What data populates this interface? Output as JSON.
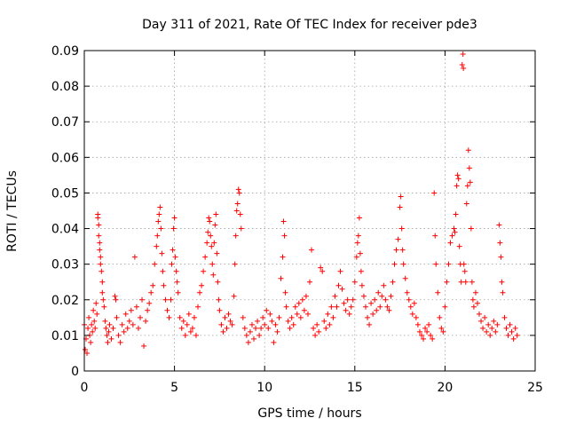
{
  "chart_data": {
    "type": "scatter",
    "title": "Day 311 of 2021, Rate Of TEC Index for receiver pde3",
    "xlabel": "GPS time / hours",
    "ylabel": "ROTI / TECUs",
    "xlim": [
      0,
      25
    ],
    "ylim": [
      0,
      0.09
    ],
    "x_ticks": [
      0,
      5,
      10,
      15,
      20,
      25
    ],
    "y_ticks": [
      0,
      0.01,
      0.02,
      0.03,
      0.04,
      0.05,
      0.06,
      0.07,
      0.08,
      0.09
    ],
    "x_tick_labels": [
      "0",
      "5",
      "10",
      "15",
      "20",
      "25"
    ],
    "y_tick_labels": [
      "0",
      "0.01",
      "0.02",
      "0.03",
      "0.04",
      "0.05",
      "0.06",
      "0.07",
      "0.08",
      "0.09"
    ],
    "grid": true,
    "marker": "+",
    "marker_color": "#ff0000",
    "series": [
      {
        "points": [
          [
            0.0,
            0.013
          ],
          [
            0.05,
            0.006
          ],
          [
            0.1,
            0.009
          ],
          [
            0.15,
            0.005
          ],
          [
            0.2,
            0.012
          ],
          [
            0.25,
            0.015
          ],
          [
            0.3,
            0.01
          ],
          [
            0.35,
            0.008
          ],
          [
            0.4,
            0.013
          ],
          [
            0.45,
            0.011
          ],
          [
            0.5,
            0.017
          ],
          [
            0.55,
            0.014
          ],
          [
            0.6,
            0.012
          ],
          [
            0.65,
            0.019
          ],
          [
            0.7,
            0.016
          ],
          [
            0.75,
            0.043
          ],
          [
            0.75,
            0.044
          ],
          [
            0.8,
            0.038
          ],
          [
            0.8,
            0.041
          ],
          [
            0.85,
            0.034
          ],
          [
            0.85,
            0.036
          ],
          [
            0.9,
            0.03
          ],
          [
            0.9,
            0.032
          ],
          [
            0.95,
            0.028
          ],
          [
            1.0,
            0.025
          ],
          [
            1.0,
            0.022
          ],
          [
            1.05,
            0.02
          ],
          [
            1.1,
            0.018
          ],
          [
            1.15,
            0.014
          ],
          [
            1.2,
            0.012
          ],
          [
            1.25,
            0.01
          ],
          [
            1.3,
            0.008
          ],
          [
            1.35,
            0.011
          ],
          [
            1.4,
            0.013
          ],
          [
            1.5,
            0.009
          ],
          [
            1.6,
            0.012
          ],
          [
            1.7,
            0.021
          ],
          [
            1.75,
            0.02
          ],
          [
            1.8,
            0.015
          ],
          [
            1.9,
            0.01
          ],
          [
            2.0,
            0.008
          ],
          [
            2.1,
            0.013
          ],
          [
            2.2,
            0.011
          ],
          [
            2.3,
            0.016
          ],
          [
            2.4,
            0.012
          ],
          [
            2.5,
            0.014
          ],
          [
            2.6,
            0.017
          ],
          [
            2.7,
            0.013
          ],
          [
            2.8,
            0.032
          ],
          [
            2.9,
            0.018
          ],
          [
            3.0,
            0.012
          ],
          [
            3.1,
            0.015
          ],
          [
            3.2,
            0.02
          ],
          [
            3.3,
            0.007
          ],
          [
            3.4,
            0.014
          ],
          [
            3.5,
            0.017
          ],
          [
            3.6,
            0.019
          ],
          [
            3.7,
            0.022
          ],
          [
            3.8,
            0.024
          ],
          [
            3.9,
            0.03
          ],
          [
            4.0,
            0.035
          ],
          [
            4.05,
            0.038
          ],
          [
            4.1,
            0.042
          ],
          [
            4.15,
            0.044
          ],
          [
            4.2,
            0.046
          ],
          [
            4.25,
            0.04
          ],
          [
            4.3,
            0.033
          ],
          [
            4.35,
            0.028
          ],
          [
            4.4,
            0.024
          ],
          [
            4.5,
            0.02
          ],
          [
            4.6,
            0.017
          ],
          [
            4.7,
            0.015
          ],
          [
            4.8,
            0.02
          ],
          [
            4.85,
            0.03
          ],
          [
            4.9,
            0.034
          ],
          [
            4.95,
            0.04
          ],
          [
            5.0,
            0.043
          ],
          [
            5.05,
            0.032
          ],
          [
            5.1,
            0.028
          ],
          [
            5.15,
            0.025
          ],
          [
            5.2,
            0.022
          ],
          [
            5.3,
            0.015
          ],
          [
            5.4,
            0.012
          ],
          [
            5.5,
            0.014
          ],
          [
            5.6,
            0.01
          ],
          [
            5.7,
            0.013
          ],
          [
            5.8,
            0.016
          ],
          [
            5.9,
            0.011
          ],
          [
            6.0,
            0.012
          ],
          [
            6.1,
            0.015
          ],
          [
            6.2,
            0.01
          ],
          [
            6.3,
            0.018
          ],
          [
            6.4,
            0.022
          ],
          [
            6.5,
            0.024
          ],
          [
            6.6,
            0.028
          ],
          [
            6.7,
            0.032
          ],
          [
            6.8,
            0.036
          ],
          [
            6.85,
            0.039
          ],
          [
            6.9,
            0.043
          ],
          [
            6.95,
            0.042
          ],
          [
            7.0,
            0.038
          ],
          [
            7.05,
            0.035
          ],
          [
            7.1,
            0.03
          ],
          [
            7.15,
            0.027
          ],
          [
            7.2,
            0.036
          ],
          [
            7.25,
            0.041
          ],
          [
            7.3,
            0.044
          ],
          [
            7.35,
            0.033
          ],
          [
            7.4,
            0.025
          ],
          [
            7.45,
            0.02
          ],
          [
            7.5,
            0.017
          ],
          [
            7.6,
            0.013
          ],
          [
            7.7,
            0.011
          ],
          [
            7.8,
            0.015
          ],
          [
            7.9,
            0.012
          ],
          [
            8.0,
            0.016
          ],
          [
            8.1,
            0.014
          ],
          [
            8.2,
            0.013
          ],
          [
            8.3,
            0.021
          ],
          [
            8.35,
            0.03
          ],
          [
            8.4,
            0.038
          ],
          [
            8.45,
            0.045
          ],
          [
            8.5,
            0.047
          ],
          [
            8.55,
            0.051
          ],
          [
            8.6,
            0.05
          ],
          [
            8.65,
            0.044
          ],
          [
            8.7,
            0.04
          ],
          [
            8.8,
            0.015
          ],
          [
            8.9,
            0.012
          ],
          [
            9.0,
            0.01
          ],
          [
            9.1,
            0.008
          ],
          [
            9.2,
            0.011
          ],
          [
            9.3,
            0.013
          ],
          [
            9.4,
            0.009
          ],
          [
            9.5,
            0.012
          ],
          [
            9.6,
            0.014
          ],
          [
            9.7,
            0.01
          ],
          [
            9.8,
            0.012
          ],
          [
            9.9,
            0.015
          ],
          [
            10.0,
            0.013
          ],
          [
            10.1,
            0.017
          ],
          [
            10.2,
            0.012
          ],
          [
            10.3,
            0.016
          ],
          [
            10.4,
            0.014
          ],
          [
            10.5,
            0.008
          ],
          [
            10.6,
            0.013
          ],
          [
            10.7,
            0.011
          ],
          [
            10.8,
            0.015
          ],
          [
            10.9,
            0.026
          ],
          [
            11.0,
            0.032
          ],
          [
            11.05,
            0.042
          ],
          [
            11.1,
            0.038
          ],
          [
            11.15,
            0.022
          ],
          [
            11.2,
            0.018
          ],
          [
            11.3,
            0.014
          ],
          [
            11.4,
            0.012
          ],
          [
            11.5,
            0.015
          ],
          [
            11.6,
            0.013
          ],
          [
            11.7,
            0.018
          ],
          [
            11.8,
            0.016
          ],
          [
            11.9,
            0.019
          ],
          [
            12.0,
            0.015
          ],
          [
            12.1,
            0.02
          ],
          [
            12.2,
            0.017
          ],
          [
            12.3,
            0.021
          ],
          [
            12.4,
            0.016
          ],
          [
            12.5,
            0.025
          ],
          [
            12.6,
            0.034
          ],
          [
            12.7,
            0.012
          ],
          [
            12.8,
            0.01
          ],
          [
            12.9,
            0.013
          ],
          [
            13.0,
            0.011
          ],
          [
            13.1,
            0.029
          ],
          [
            13.2,
            0.028
          ],
          [
            13.3,
            0.014
          ],
          [
            13.4,
            0.012
          ],
          [
            13.5,
            0.016
          ],
          [
            13.6,
            0.013
          ],
          [
            13.7,
            0.018
          ],
          [
            13.8,
            0.015
          ],
          [
            13.9,
            0.021
          ],
          [
            14.0,
            0.018
          ],
          [
            14.1,
            0.024
          ],
          [
            14.2,
            0.028
          ],
          [
            14.3,
            0.023
          ],
          [
            14.4,
            0.019
          ],
          [
            14.5,
            0.017
          ],
          [
            14.6,
            0.02
          ],
          [
            14.7,
            0.016
          ],
          [
            14.8,
            0.018
          ],
          [
            14.9,
            0.02
          ],
          [
            15.0,
            0.025
          ],
          [
            15.1,
            0.032
          ],
          [
            15.15,
            0.036
          ],
          [
            15.2,
            0.038
          ],
          [
            15.25,
            0.043
          ],
          [
            15.3,
            0.033
          ],
          [
            15.35,
            0.028
          ],
          [
            15.4,
            0.024
          ],
          [
            15.5,
            0.021
          ],
          [
            15.6,
            0.018
          ],
          [
            15.7,
            0.015
          ],
          [
            15.8,
            0.013
          ],
          [
            15.9,
            0.019
          ],
          [
            16.0,
            0.016
          ],
          [
            16.1,
            0.02
          ],
          [
            16.2,
            0.017
          ],
          [
            16.3,
            0.022
          ],
          [
            16.4,
            0.018
          ],
          [
            16.5,
            0.021
          ],
          [
            16.6,
            0.024
          ],
          [
            16.7,
            0.02
          ],
          [
            16.8,
            0.018
          ],
          [
            16.9,
            0.017
          ],
          [
            17.0,
            0.021
          ],
          [
            17.1,
            0.025
          ],
          [
            17.2,
            0.03
          ],
          [
            17.3,
            0.034
          ],
          [
            17.4,
            0.037
          ],
          [
            17.5,
            0.046
          ],
          [
            17.55,
            0.049
          ],
          [
            17.6,
            0.04
          ],
          [
            17.65,
            0.034
          ],
          [
            17.7,
            0.03
          ],
          [
            17.8,
            0.026
          ],
          [
            17.9,
            0.022
          ],
          [
            18.0,
            0.02
          ],
          [
            18.1,
            0.018
          ],
          [
            18.2,
            0.016
          ],
          [
            18.3,
            0.019
          ],
          [
            18.4,
            0.015
          ],
          [
            18.5,
            0.013
          ],
          [
            18.6,
            0.011
          ],
          [
            18.7,
            0.01
          ],
          [
            18.8,
            0.009
          ],
          [
            18.9,
            0.012
          ],
          [
            19.0,
            0.011
          ],
          [
            19.1,
            0.013
          ],
          [
            19.2,
            0.01
          ],
          [
            19.3,
            0.009
          ],
          [
            19.4,
            0.05
          ],
          [
            19.45,
            0.038
          ],
          [
            19.5,
            0.03
          ],
          [
            19.6,
            0.022
          ],
          [
            19.7,
            0.015
          ],
          [
            19.8,
            0.012
          ],
          [
            19.9,
            0.011
          ],
          [
            20.0,
            0.018
          ],
          [
            20.1,
            0.025
          ],
          [
            20.2,
            0.03
          ],
          [
            20.3,
            0.036
          ],
          [
            20.4,
            0.038
          ],
          [
            20.5,
            0.04
          ],
          [
            20.55,
            0.039
          ],
          [
            20.6,
            0.044
          ],
          [
            20.65,
            0.052
          ],
          [
            20.7,
            0.055
          ],
          [
            20.75,
            0.054
          ],
          [
            20.8,
            0.035
          ],
          [
            20.85,
            0.03
          ],
          [
            20.9,
            0.025
          ],
          [
            20.95,
            0.086
          ],
          [
            21.0,
            0.089
          ],
          [
            21.02,
            0.085
          ],
          [
            21.05,
            0.03
          ],
          [
            21.1,
            0.028
          ],
          [
            21.15,
            0.025
          ],
          [
            21.2,
            0.047
          ],
          [
            21.25,
            0.052
          ],
          [
            21.3,
            0.062
          ],
          [
            21.35,
            0.057
          ],
          [
            21.4,
            0.053
          ],
          [
            21.45,
            0.04
          ],
          [
            21.5,
            0.025
          ],
          [
            21.55,
            0.02
          ],
          [
            21.6,
            0.018
          ],
          [
            21.7,
            0.022
          ],
          [
            21.8,
            0.019
          ],
          [
            21.9,
            0.016
          ],
          [
            22.0,
            0.014
          ],
          [
            22.1,
            0.012
          ],
          [
            22.2,
            0.015
          ],
          [
            22.3,
            0.011
          ],
          [
            22.4,
            0.013
          ],
          [
            22.5,
            0.01
          ],
          [
            22.6,
            0.012
          ],
          [
            22.7,
            0.014
          ],
          [
            22.8,
            0.011
          ],
          [
            22.9,
            0.013
          ],
          [
            23.0,
            0.041
          ],
          [
            23.05,
            0.036
          ],
          [
            23.1,
            0.032
          ],
          [
            23.15,
            0.025
          ],
          [
            23.2,
            0.022
          ],
          [
            23.3,
            0.015
          ],
          [
            23.4,
            0.012
          ],
          [
            23.5,
            0.01
          ],
          [
            23.6,
            0.013
          ],
          [
            23.7,
            0.011
          ],
          [
            23.8,
            0.009
          ],
          [
            23.9,
            0.012
          ],
          [
            24.0,
            0.01
          ]
        ]
      }
    ]
  }
}
